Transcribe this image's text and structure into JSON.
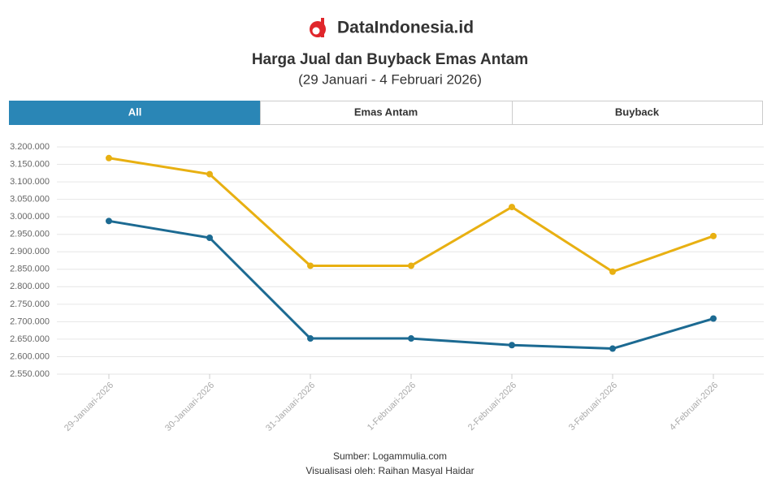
{
  "header": {
    "brand": "DataIndonesia.id"
  },
  "tabs": [
    "All"
  ],
  "chart_data": {
    "type": "line",
    "title": "Harga Jual dan Buyback Emas Antam",
    "subtitle": "(29 Januari - 4 Februari 2026)",
    "categories": [
      "29-Januari-2026",
      "30-Januari-2026",
      "31-Januari-2026",
      "1-Februari-2026",
      "2-Februari-2026",
      "3-Februari-2026",
      "4-Februari-2026"
    ],
    "series": [
      {
        "name": "Emas Antam",
        "color": "#e8b012",
        "values": [
          3168000,
          3122000,
          2860000,
          2860000,
          3028000,
          2843000,
          2945000
        ]
      },
      {
        "name": "Buyback",
        "color": "#1c6a92",
        "values": [
          2988000,
          2940000,
          2652000,
          2652000,
          2633000,
          2623000,
          2709000
        ]
      }
    ],
    "ylim": [
      2550000,
      3200000
    ],
    "yticks": [
      {
        "value": 2550000,
        "label": "2.550.000"
      },
      {
        "value": 2600000,
        "label": "2.600.000"
      },
      {
        "value": 2650000,
        "label": "2.650.000"
      },
      {
        "value": 2700000,
        "label": "2.700.000"
      },
      {
        "value": 2750000,
        "label": "2.750.000"
      },
      {
        "value": 2800000,
        "label": "2.800.000"
      },
      {
        "value": 2850000,
        "label": "2.850.000"
      },
      {
        "value": 2900000,
        "label": "2.900.000"
      },
      {
        "value": 2950000,
        "label": "2.950.000"
      },
      {
        "value": 3000000,
        "label": "3.000.000"
      },
      {
        "value": 3050000,
        "label": "3.050.000"
      },
      {
        "value": 3100000,
        "label": "3.100.000"
      },
      {
        "value": 3150000,
        "label": "3.150.000"
      },
      {
        "value": 3200000,
        "label": "3.200.000"
      }
    ],
    "grid": true
  },
  "footer": {
    "source": "Sumber: Logammulia.com",
    "credit": "Visualisasi oleh: Raihan Masyal Haidar"
  }
}
